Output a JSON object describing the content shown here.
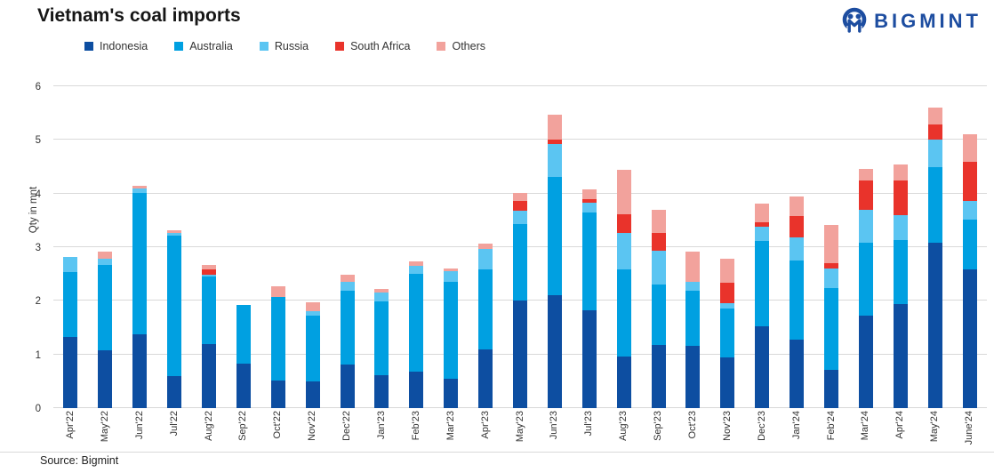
{
  "header": {
    "title": "Vietnam's coal imports",
    "brand": "BIGMINT"
  },
  "source": "Source: Bigmint",
  "brand_color": "#1d4da0",
  "grid_color": "#d9d9d9",
  "chart_data": {
    "type": "bar",
    "stacked": true,
    "title": "Vietnam's coal imports",
    "ylabel": "Qty in mnt",
    "xlabel": "",
    "ylim": [
      0,
      6
    ],
    "yticks": [
      0,
      1,
      2,
      3,
      4,
      5,
      6
    ],
    "grid": true,
    "legend_position": "top",
    "categories": [
      "Apr'22",
      "May'22",
      "Jun'22",
      "Jul'22",
      "Aug'22",
      "Sep'22",
      "Oct'22",
      "Nov'22",
      "Dec'22",
      "Jan'23",
      "Feb'23",
      "Mar'23",
      "Apr'23",
      "May'23",
      "Jun'23",
      "Jul'23",
      "Aug'23",
      "Sep'23",
      "Oct'23",
      "Nov'23",
      "Dec'23",
      "Jan'24",
      "Feb'24",
      "Mar'24",
      "Apr'24",
      "May'24",
      "June'24"
    ],
    "series": [
      {
        "name": "Indonesia",
        "color": "#0d4ea1",
        "values": [
          1.32,
          1.07,
          1.38,
          0.6,
          1.2,
          0.83,
          0.52,
          0.49,
          0.82,
          0.61,
          0.68,
          0.55,
          1.1,
          2.0,
          2.11,
          1.83,
          0.96,
          1.18,
          1.16,
          0.95,
          1.53,
          1.28,
          0.72,
          1.73,
          1.94,
          3.09,
          2.59
        ]
      },
      {
        "name": "Australia",
        "color": "#00a0e1",
        "values": [
          1.21,
          1.6,
          2.63,
          2.62,
          1.26,
          1.09,
          1.55,
          1.23,
          1.37,
          1.38,
          1.83,
          1.81,
          1.49,
          1.43,
          2.2,
          1.82,
          1.63,
          1.13,
          1.03,
          0.9,
          1.59,
          1.47,
          1.51,
          1.36,
          1.19,
          1.41,
          0.93
        ]
      },
      {
        "name": "Russia",
        "color": "#5bc5f2",
        "values": [
          0.28,
          0.12,
          0.08,
          0.05,
          0.02,
          0.0,
          0.0,
          0.08,
          0.16,
          0.16,
          0.15,
          0.2,
          0.38,
          0.25,
          0.62,
          0.18,
          0.68,
          0.63,
          0.17,
          0.11,
          0.27,
          0.44,
          0.37,
          0.6,
          0.47,
          0.51,
          0.35
        ]
      },
      {
        "name": "South Africa",
        "color": "#e9332b",
        "values": [
          0.0,
          0.0,
          0.0,
          0.0,
          0.1,
          0.0,
          0.0,
          0.0,
          0.0,
          0.0,
          0.0,
          0.0,
          0.0,
          0.19,
          0.08,
          0.07,
          0.35,
          0.33,
          0.0,
          0.37,
          0.08,
          0.39,
          0.1,
          0.55,
          0.64,
          0.28,
          0.73
        ]
      },
      {
        "name": "Others",
        "color": "#f2a29c",
        "values": [
          0.0,
          0.13,
          0.06,
          0.05,
          0.09,
          0.0,
          0.2,
          0.17,
          0.13,
          0.07,
          0.08,
          0.04,
          0.09,
          0.14,
          0.46,
          0.17,
          0.82,
          0.42,
          0.55,
          0.45,
          0.35,
          0.36,
          0.71,
          0.22,
          0.3,
          0.31,
          0.5
        ]
      }
    ]
  }
}
